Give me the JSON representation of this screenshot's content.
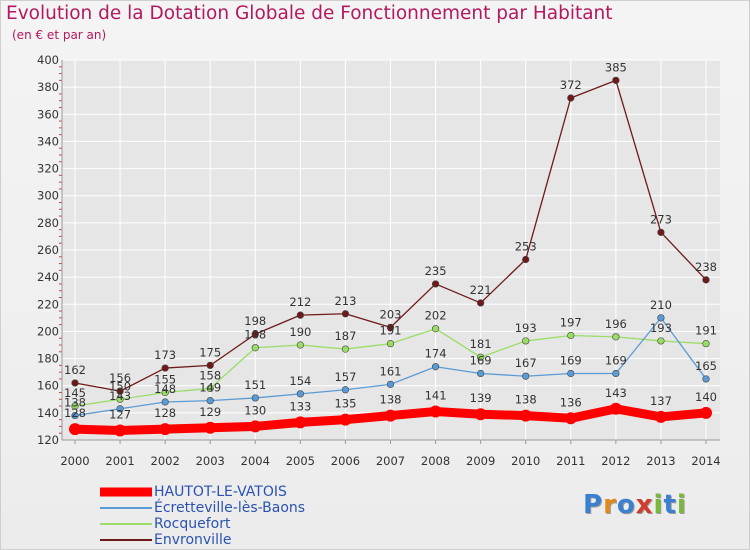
{
  "title": "Evolution de la Dotation Globale de Fonctionnement par Habitant",
  "subtitle": "(en € et par an)",
  "logo": {
    "text": "Proxiti",
    "colors": [
      "#3a7fd0",
      "#e08a1e",
      "#3a7fd0",
      "#d23b2e",
      "#7ab83a",
      "#3a7fd0",
      "#7ab83a"
    ]
  },
  "colors": {
    "title": "#b2195f",
    "grid": "#ffffff",
    "axis": "#999999",
    "tick_text": "#333333",
    "legend_text": "#2b52b0"
  },
  "chart_data": {
    "type": "line",
    "title": "Evolution de la Dotation Globale de Fonctionnement par Habitant",
    "ylabel": "(en € et par an)",
    "xlabel": "",
    "x": [
      "2000",
      "2001",
      "2002",
      "2003",
      "2004",
      "2005",
      "2006",
      "2007",
      "2008",
      "2009",
      "2010",
      "2011",
      "2012",
      "2013",
      "2014"
    ],
    "ylim": [
      120,
      400
    ],
    "yticks": [
      "120",
      "140",
      "160",
      "180",
      "200",
      "220",
      "240",
      "260",
      "280",
      "300",
      "320",
      "340",
      "360",
      "380",
      "400"
    ],
    "series": [
      {
        "name": "HAUTOT-LE-VATOIS",
        "color": "#ff0000",
        "values": [
          128,
          127,
          128,
          129,
          130,
          133,
          135,
          138,
          141,
          139,
          138,
          136,
          143,
          137,
          140
        ],
        "labels": [
          "128",
          "127",
          "128",
          "129",
          "130",
          "133",
          "135",
          "138",
          "141",
          "139",
          "138",
          "136",
          "143",
          "137",
          "140"
        ]
      },
      {
        "name": "Écretteville-lès-Baons",
        "color": "#5b9bd5",
        "values": [
          138,
          143,
          148,
          149,
          151,
          154,
          157,
          161,
          174,
          169,
          167,
          169,
          169,
          210,
          165
        ],
        "labels": [
          "138",
          "143",
          "148",
          "149",
          "151",
          "154",
          "157",
          "161",
          "174",
          "169",
          "167",
          "169",
          "169",
          "210",
          "165"
        ]
      },
      {
        "name": "Rocquefort",
        "color": "#99dd66",
        "values": [
          145,
          150,
          155,
          158,
          188,
          190,
          187,
          191,
          202,
          181,
          193,
          197,
          196,
          193,
          191
        ],
        "labels": [
          "145",
          "150",
          "155",
          "158",
          "188",
          "190",
          "187",
          "191",
          "202",
          "181",
          "193",
          "197",
          "196",
          "193",
          "191"
        ]
      },
      {
        "name": "Envronville",
        "color": "#6e1a1a",
        "values": [
          162,
          156,
          173,
          175,
          198,
          212,
          213,
          203,
          235,
          221,
          253,
          372,
          385,
          273,
          238
        ],
        "labels": [
          "162",
          "156",
          "173",
          "175",
          "198",
          "212",
          "213",
          "203",
          "235",
          "221",
          "253",
          "372",
          "385",
          "273",
          "238"
        ]
      }
    ],
    "legend_position": "bottom-left"
  }
}
